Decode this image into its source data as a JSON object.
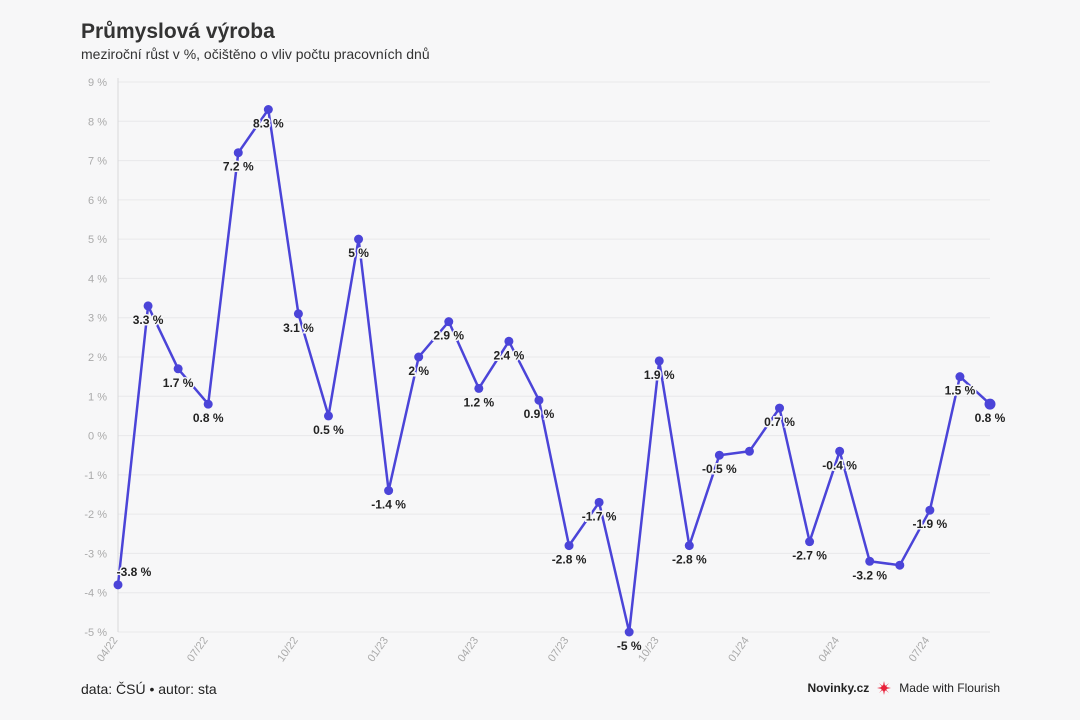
{
  "header": {
    "title": "Průmyslová výroba",
    "subtitle": "meziroční růst v %, očištěno o vliv počtu pracovních dnů"
  },
  "footer": {
    "source": "data: ČSÚ • autor: sta",
    "brand": "Novinky.cz",
    "made_with": "Made with Flourish",
    "flourish_icon": "flourish-logo-icon"
  },
  "colors": {
    "line": "#4b44d8",
    "grid": "#e8e8ea",
    "axis_text": "#aaaaaa",
    "label_text": "#222222",
    "flourish": "#e8203a"
  },
  "chart_data": {
    "type": "line",
    "x": [
      "04/22",
      "05/22",
      "06/22",
      "07/22",
      "08/22",
      "09/22",
      "10/22",
      "11/22",
      "12/22",
      "01/23",
      "02/23",
      "03/23",
      "04/23",
      "05/23",
      "06/23",
      "07/23",
      "08/23",
      "09/23",
      "10/23",
      "11/23",
      "12/23",
      "01/24",
      "02/24",
      "03/24",
      "04/24",
      "05/24",
      "06/24",
      "07/24",
      "08/24",
      "09/24"
    ],
    "series": [
      {
        "values": [
          -3.8,
          3.3,
          1.7,
          0.8,
          7.2,
          8.3,
          3.1,
          0.5,
          5,
          -1.4,
          2,
          2.9,
          1.2,
          2.4,
          0.9,
          -2.8,
          -1.7,
          -5,
          1.9,
          -2.8,
          -0.5,
          -0.4,
          0.7,
          -2.7,
          -0.4,
          -3.2,
          -3.3,
          -1.9,
          1.5,
          0.8
        ]
      }
    ],
    "data_labels": [
      {
        "index": 0,
        "text": "-3.8 %"
      },
      {
        "index": 1,
        "text": "3.3 %"
      },
      {
        "index": 2,
        "text": "1.7 %"
      },
      {
        "index": 3,
        "text": "0.8 %"
      },
      {
        "index": 4,
        "text": "7.2 %"
      },
      {
        "index": 5,
        "text": "8.3 %"
      },
      {
        "index": 6,
        "text": "3.1 %"
      },
      {
        "index": 7,
        "text": "0.5 %"
      },
      {
        "index": 8,
        "text": "5 %"
      },
      {
        "index": 9,
        "text": "-1.4 %"
      },
      {
        "index": 10,
        "text": "2 %"
      },
      {
        "index": 11,
        "text": "2.9 %"
      },
      {
        "index": 12,
        "text": "1.2 %"
      },
      {
        "index": 13,
        "text": "2.4 %"
      },
      {
        "index": 14,
        "text": "0.9 %"
      },
      {
        "index": 15,
        "text": "-2.8 %"
      },
      {
        "index": 16,
        "text": "-1.7 %"
      },
      {
        "index": 17,
        "text": "-5 %"
      },
      {
        "index": 18,
        "text": "1.9 %"
      },
      {
        "index": 19,
        "text": "-2.8 %"
      },
      {
        "index": 20,
        "text": "-0.5 %"
      },
      {
        "index": 22,
        "text": "0.7 %"
      },
      {
        "index": 23,
        "text": "-2.7 %"
      },
      {
        "index": 24,
        "text": "-0.4 %"
      },
      {
        "index": 25,
        "text": "-3.2 %"
      },
      {
        "index": 27,
        "text": "-1.9 %"
      },
      {
        "index": 28,
        "text": "1.5 %"
      },
      {
        "index": 29,
        "text": "0.8 %"
      }
    ],
    "x_tick_labels": [
      {
        "index": 0,
        "text": "04/22"
      },
      {
        "index": 3,
        "text": "07/22"
      },
      {
        "index": 6,
        "text": "10/22"
      },
      {
        "index": 9,
        "text": "01/23"
      },
      {
        "index": 12,
        "text": "04/23"
      },
      {
        "index": 15,
        "text": "07/23"
      },
      {
        "index": 18,
        "text": "10/23"
      },
      {
        "index": 21,
        "text": "01/24"
      },
      {
        "index": 24,
        "text": "04/24"
      },
      {
        "index": 27,
        "text": "07/24"
      }
    ],
    "y_ticks": [
      {
        "value": 9,
        "text": "9 %"
      },
      {
        "value": 8,
        "text": "8 %"
      },
      {
        "value": 7,
        "text": "7 %"
      },
      {
        "value": 6,
        "text": "6 %"
      },
      {
        "value": 5,
        "text": "5 %"
      },
      {
        "value": 4,
        "text": "4 %"
      },
      {
        "value": 3,
        "text": "3 %"
      },
      {
        "value": 2,
        "text": "2 %"
      },
      {
        "value": 1,
        "text": "1 %"
      },
      {
        "value": 0,
        "text": "0 %"
      },
      {
        "value": -1,
        "text": "-1 %"
      },
      {
        "value": -2,
        "text": "-2 %"
      },
      {
        "value": -3,
        "text": "-3 %"
      },
      {
        "value": -4,
        "text": "-4 %"
      },
      {
        "value": -5,
        "text": "-5 %"
      }
    ],
    "ylim": [
      -5,
      9
    ],
    "grid": true,
    "legend": "none"
  }
}
